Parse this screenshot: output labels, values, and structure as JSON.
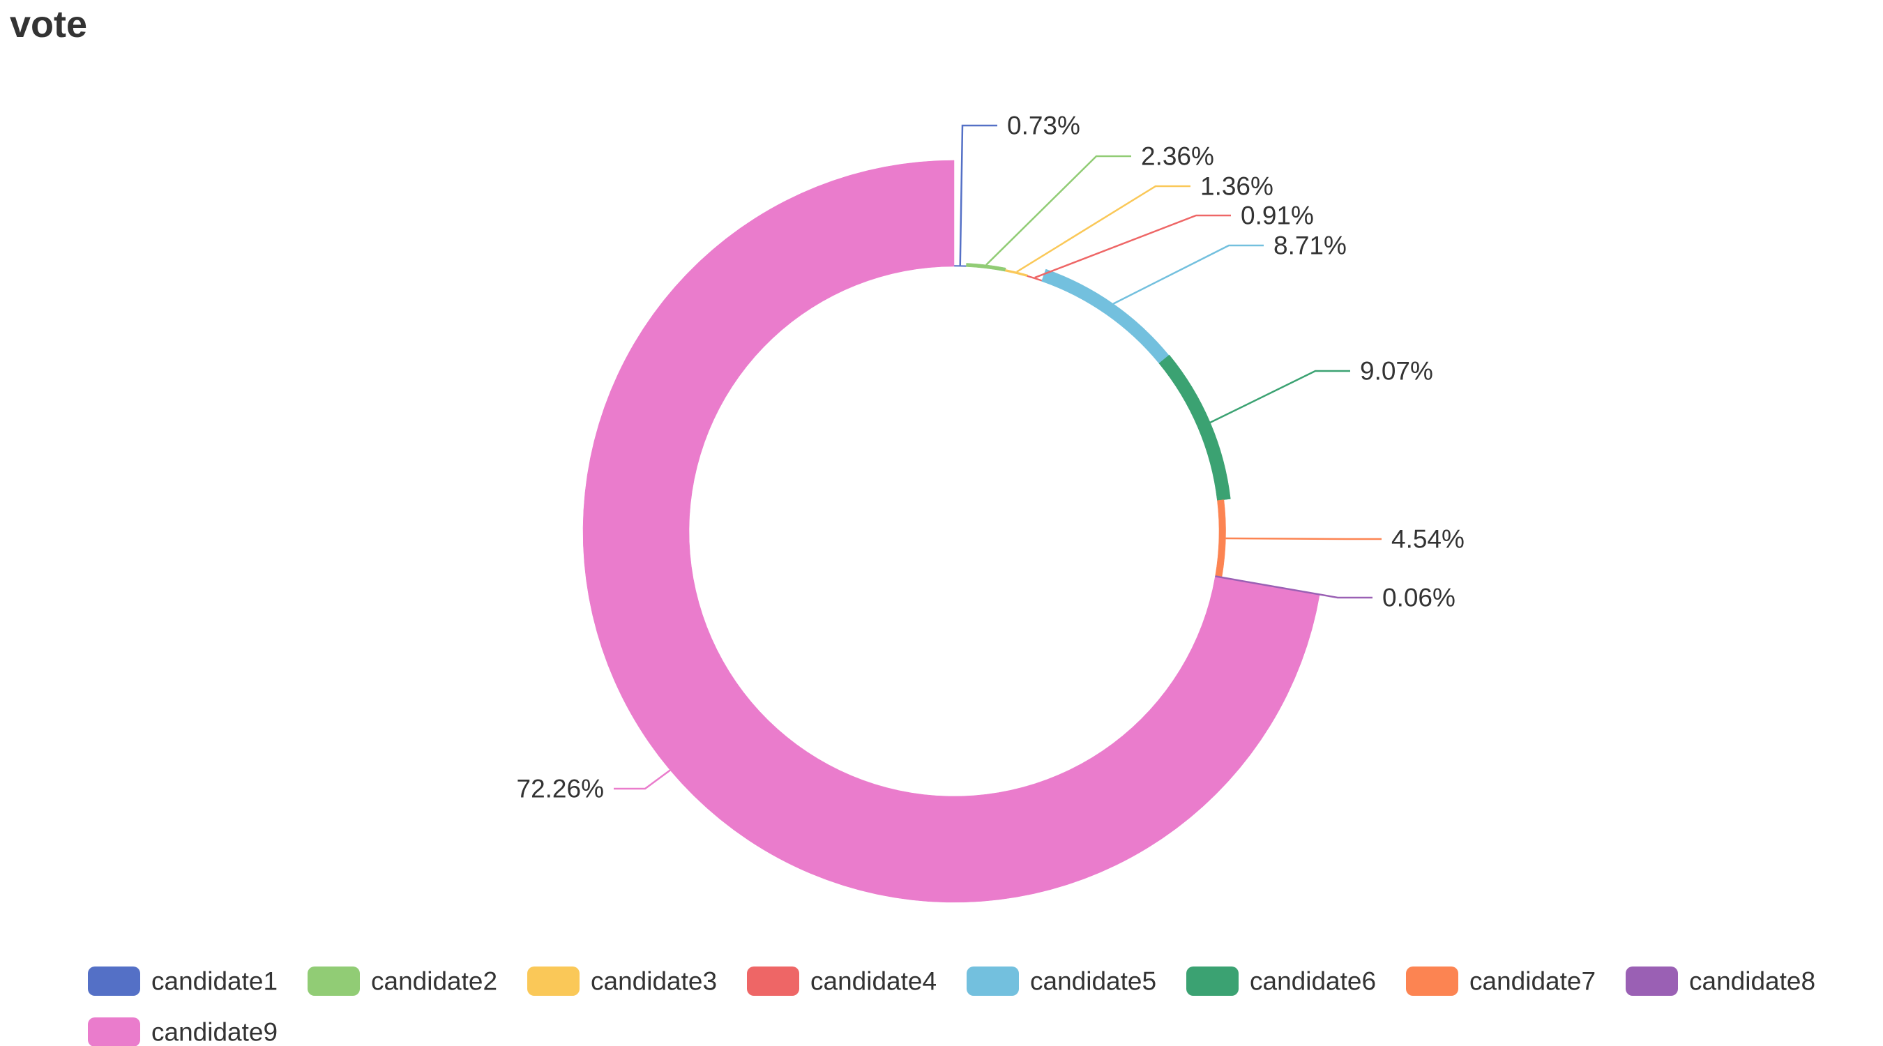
{
  "chart_data": {
    "type": "pie",
    "title": "vote",
    "donut": true,
    "legend_position": "bottom",
    "categories": [
      "candidate1",
      "candidate2",
      "candidate3",
      "candidate4",
      "candidate5",
      "candidate6",
      "candidate7",
      "candidate8",
      "candidate9"
    ],
    "values": [
      0.73,
      2.36,
      1.36,
      0.91,
      8.71,
      9.07,
      4.54,
      0.06,
      72.26
    ],
    "labels": [
      "0.73%",
      "2.36%",
      "1.36%",
      "0.91%",
      "8.71%",
      "9.07%",
      "4.54%",
      "0.06%",
      "72.26%"
    ],
    "colors": [
      "#5470c6",
      "#91cc75",
      "#fac858",
      "#ee6666",
      "#73c0de",
      "#3ba272",
      "#fc8452",
      "#9a60b4",
      "#ea7ccc"
    ]
  }
}
